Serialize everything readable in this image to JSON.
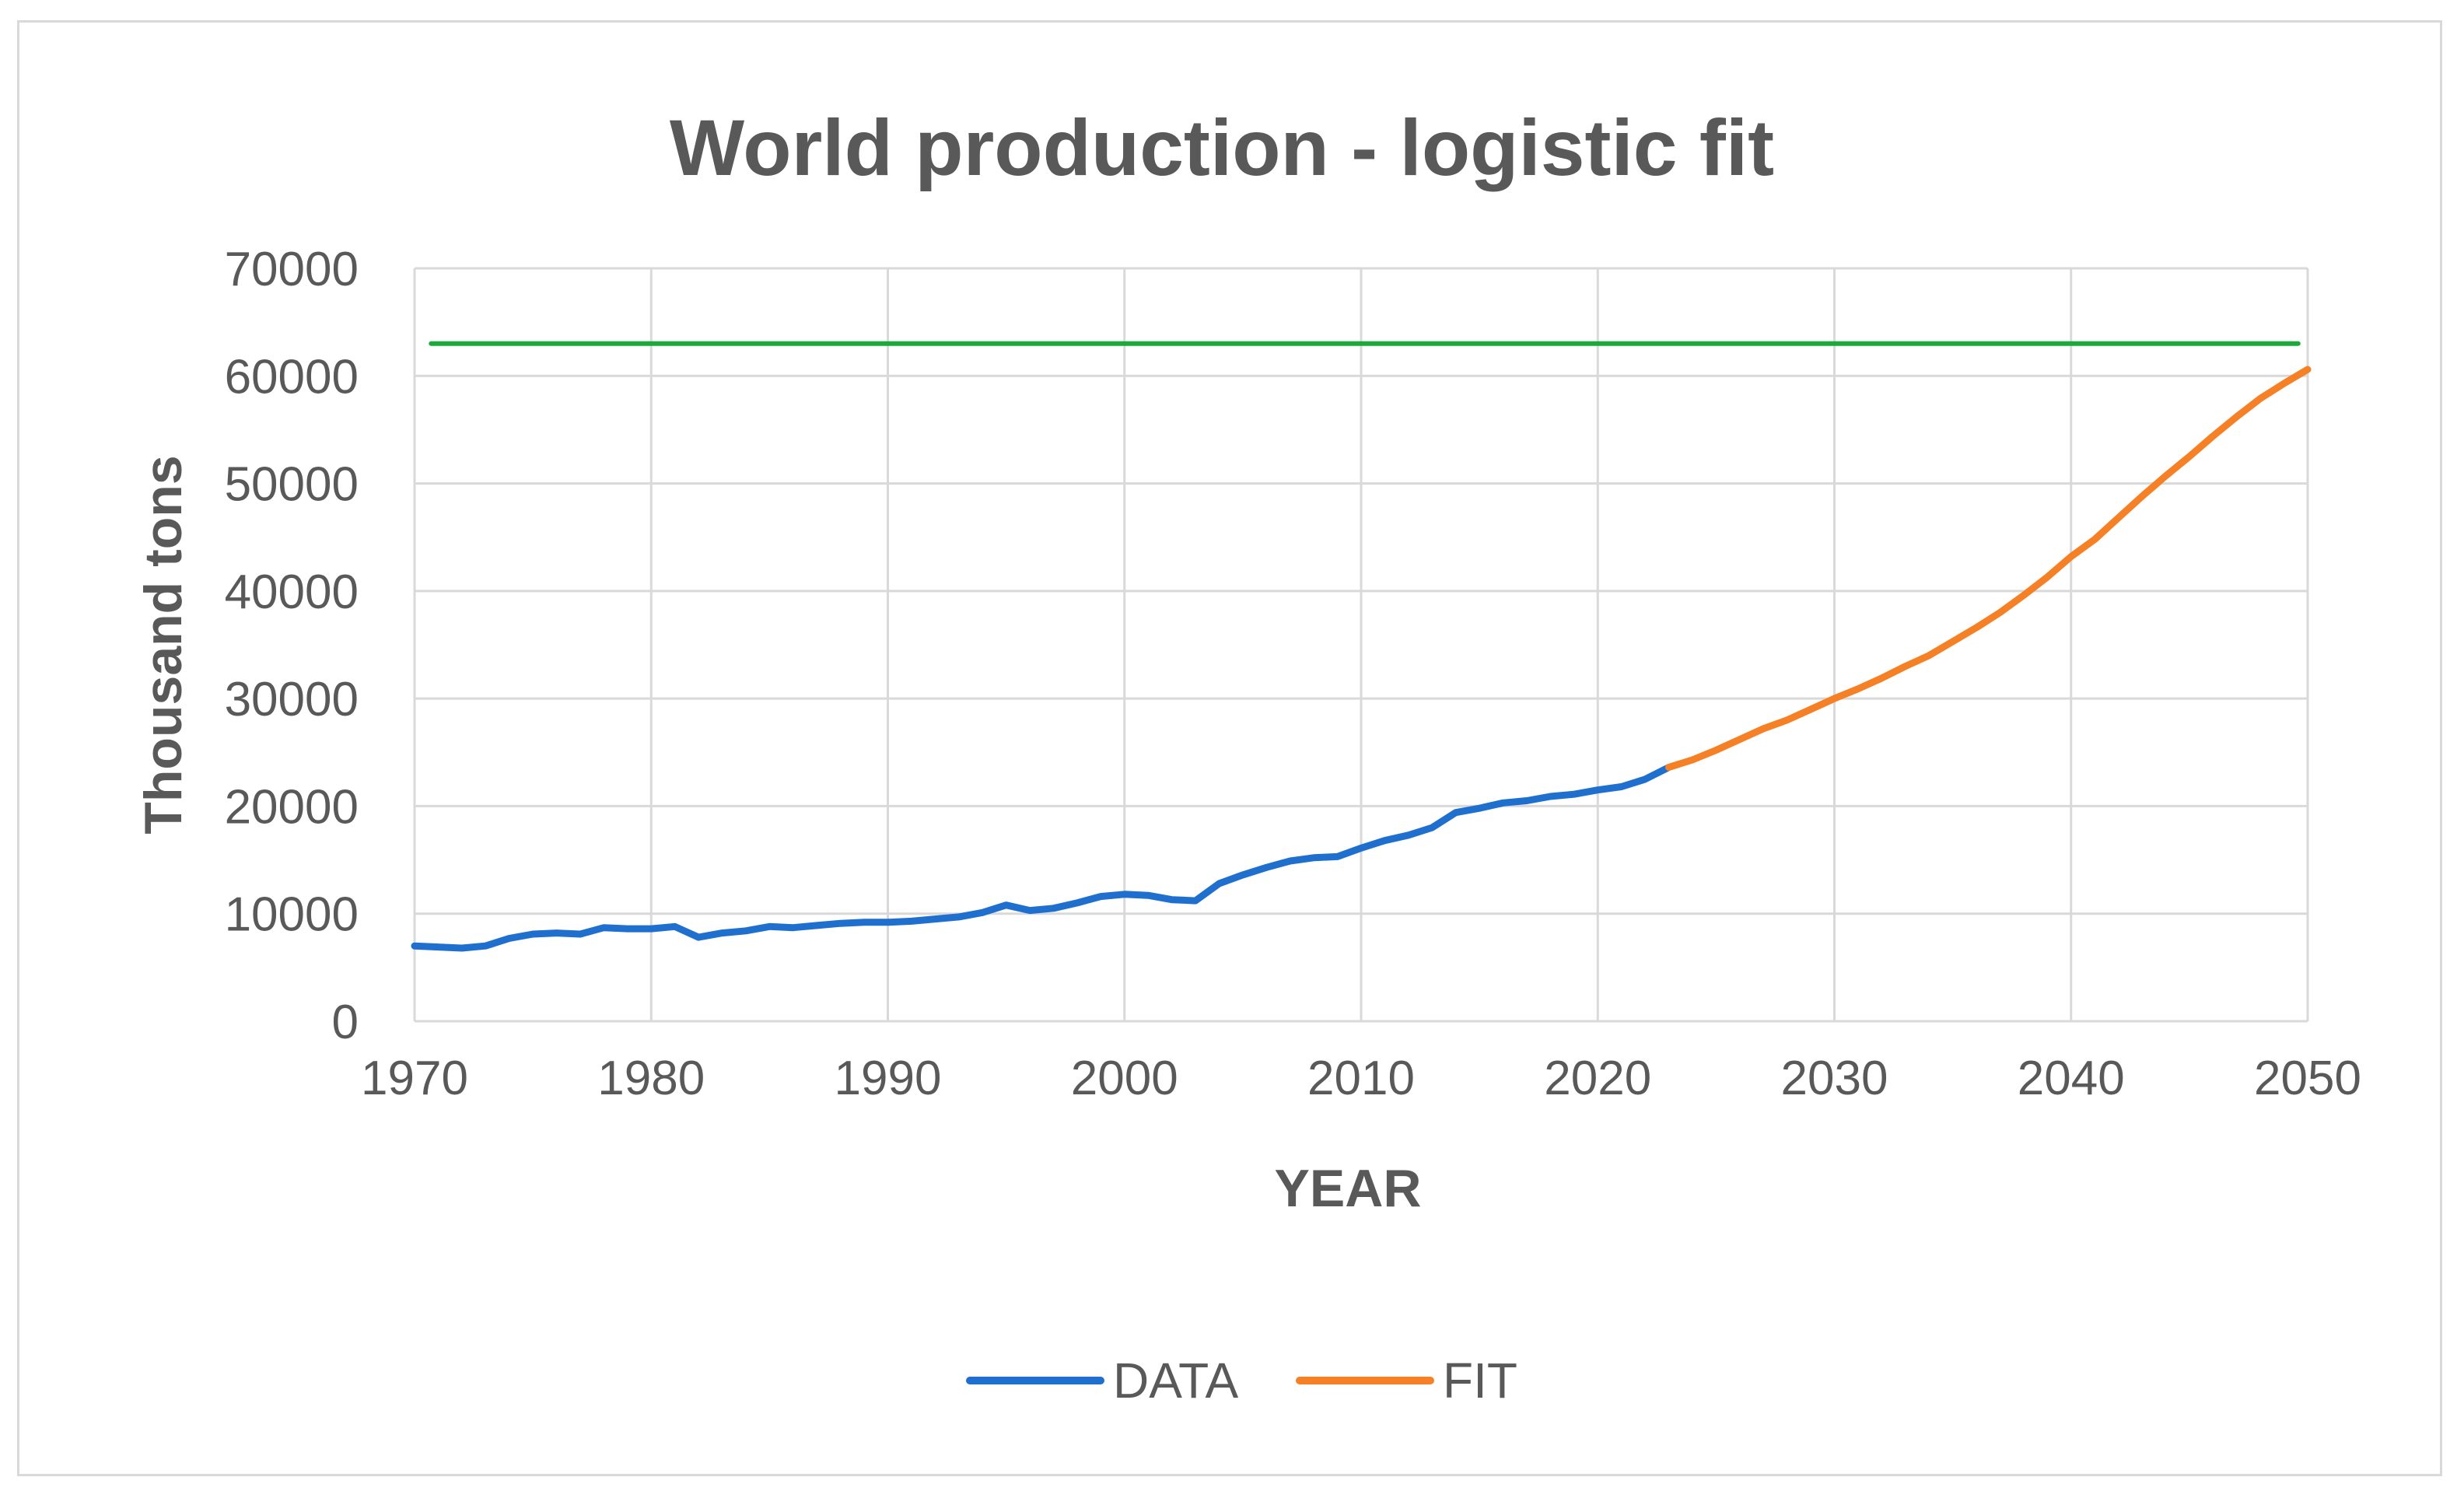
{
  "chart_data": {
    "type": "line",
    "title": "World production - logistic fit",
    "xlabel": "YEAR",
    "ylabel": "Thousand tons",
    "xlim": [
      1970,
      2050
    ],
    "ylim": [
      0,
      70000
    ],
    "xticks": [
      1970,
      1980,
      1990,
      2000,
      2010,
      2020,
      2030,
      2040,
      2050
    ],
    "xtick_labels": [
      "1970",
      "1980",
      "1990",
      "2000",
      "2010",
      "2020",
      "2030",
      "2040",
      "2050"
    ],
    "yticks": [
      0,
      10000,
      20000,
      30000,
      40000,
      50000,
      60000,
      70000
    ],
    "ytick_labels": [
      "0",
      "10000",
      "20000",
      "30000",
      "40000",
      "50000",
      "60000",
      "70000"
    ],
    "grid": true,
    "legend_position": "bottom",
    "series": [
      {
        "name": "DATA",
        "color": "#1f6fcf",
        "x": [
          1970,
          1971,
          1972,
          1973,
          1974,
          1975,
          1976,
          1977,
          1978,
          1979,
          1980,
          1981,
          1982,
          1983,
          1984,
          1985,
          1986,
          1987,
          1988,
          1989,
          1990,
          1991,
          1992,
          1993,
          1994,
          1995,
          1996,
          1997,
          1998,
          1999,
          2000,
          2001,
          2002,
          2003,
          2004,
          2005,
          2006,
          2007,
          2008,
          2009,
          2010,
          2011,
          2012,
          2013,
          2014,
          2015,
          2016,
          2017,
          2018,
          2019,
          2020,
          2021,
          2022,
          2023
        ],
        "values": [
          7000,
          6900,
          6800,
          7000,
          7700,
          8100,
          8200,
          8100,
          8700,
          8600,
          8600,
          8800,
          7800,
          8200,
          8400,
          8800,
          8700,
          8900,
          9100,
          9200,
          9200,
          9300,
          9500,
          9700,
          10100,
          10800,
          10300,
          10500,
          11000,
          11600,
          11800,
          11700,
          11300,
          11200,
          12800,
          13600,
          14300,
          14900,
          15200,
          15300,
          16100,
          16800,
          17300,
          18000,
          19400,
          19800,
          20300,
          20500,
          20900,
          21100,
          21500,
          21800,
          22500,
          23600
        ]
      },
      {
        "name": "FIT",
        "color": "#f58025",
        "x": [
          2023,
          2024,
          2025,
          2026,
          2027,
          2028,
          2029,
          2030,
          2031,
          2032,
          2033,
          2034,
          2035,
          2036,
          2037,
          2038,
          2039,
          2040,
          2041,
          2042,
          2043,
          2044,
          2045,
          2046,
          2047,
          2048,
          2049,
          2050
        ],
        "values": [
          23600,
          24300,
          25200,
          26200,
          27200,
          28000,
          29000,
          30000,
          30900,
          31900,
          33000,
          34000,
          35300,
          36600,
          38000,
          39600,
          41300,
          43200,
          44800,
          46800,
          48800,
          50700,
          52500,
          54400,
          56200,
          57900,
          59300,
          60600
        ]
      },
      {
        "name": "",
        "color": "#1aaa3a",
        "x": [
          1970.7,
          2049.6
        ],
        "values": [
          63000,
          63000
        ]
      }
    ]
  }
}
